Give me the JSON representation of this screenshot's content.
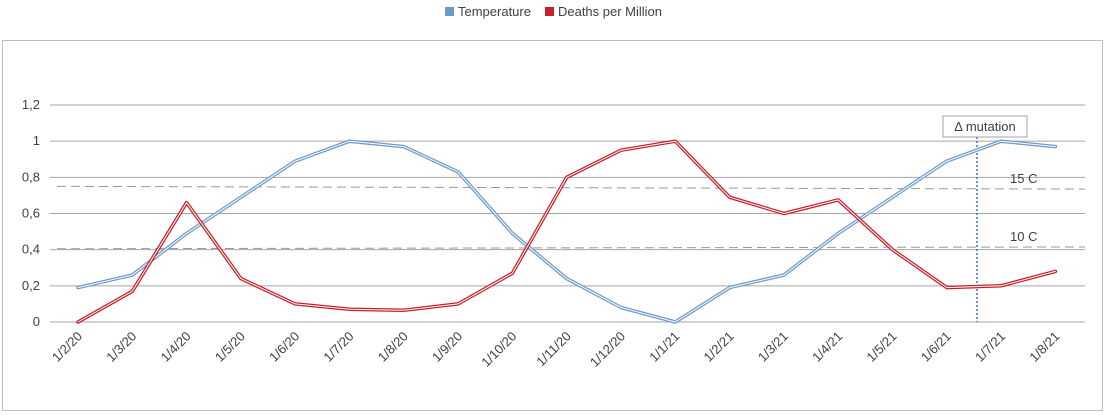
{
  "colors": {
    "temperature": "#6f99cc",
    "deaths": "#c8202b",
    "grid": "#a6a6a6",
    "reference": "#999999",
    "mutation": "#4472c4"
  },
  "chart_data": {
    "type": "line",
    "title": "",
    "xlabel": "",
    "ylabel": "",
    "categories": [
      "1/2/20",
      "1/3/20",
      "1/4/20",
      "1/5/20",
      "1/6/20",
      "1/7/20",
      "1/8/20",
      "1/9/20",
      "1/10/20",
      "1/11/20",
      "1/12/20",
      "1/1/21",
      "1/2/21",
      "1/3/21",
      "1/4/21",
      "1/5/21",
      "1/6/21",
      "1/7/21",
      "1/8/21"
    ],
    "ylim": [
      0,
      1.2
    ],
    "yticks": [
      0,
      0.2,
      0.4,
      0.6,
      0.8,
      1,
      1.2
    ],
    "ytick_labels": [
      "0",
      "0,2",
      "0,4",
      "0,6",
      "0,8",
      "1",
      "1,2"
    ],
    "grid": true,
    "legend_position": "top",
    "series": [
      {
        "name": "Temperature",
        "color": "#6f99cc",
        "values": [
          0.19,
          0.26,
          0.49,
          0.69,
          0.89,
          1.0,
          0.97,
          0.83,
          0.49,
          0.24,
          0.08,
          0.0,
          0.19,
          0.26,
          0.49,
          0.69,
          0.89,
          1.0,
          0.97
        ]
      },
      {
        "name": "Deaths per Million",
        "color": "#c8202b",
        "values": [
          0.0,
          0.17,
          0.66,
          0.24,
          0.1,
          0.07,
          0.065,
          0.1,
          0.27,
          0.8,
          0.95,
          1.0,
          0.69,
          0.6,
          0.675,
          0.4,
          0.19,
          0.2,
          0.28
        ]
      }
    ],
    "reference_lines": [
      {
        "label": "15 C",
        "start": 0.75,
        "end": 0.735
      },
      {
        "label": "10 C",
        "start": 0.405,
        "end": 0.415
      }
    ],
    "annotation": {
      "label": "Δ mutation",
      "x_between": [
        "1/6/21",
        "1/7/21"
      ]
    }
  }
}
